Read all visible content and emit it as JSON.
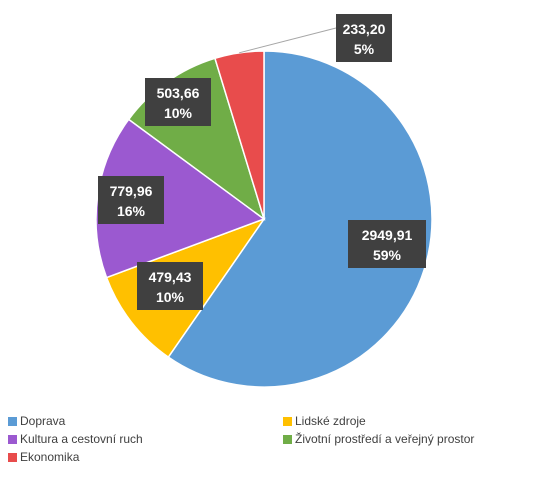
{
  "chart_data": {
    "type": "pie",
    "title": "",
    "start_angle_deg": 0,
    "direction": "clockwise",
    "slices": [
      {
        "name": "Doprava",
        "value": 2949.91,
        "value_label": "2949,91",
        "percent_label": "59%",
        "color": "#5b9bd5"
      },
      {
        "name": "Lidské zdroje",
        "value": 479.43,
        "value_label": "479,43",
        "percent_label": "10%",
        "color": "#ffc000"
      },
      {
        "name": "Kultura a cestovní ruch",
        "value": 779.96,
        "value_label": "779,96",
        "percent_label": "16%",
        "color": "#9b59d0"
      },
      {
        "name": "Životní prostředí a veřejný prostor",
        "value": 503.66,
        "value_label": "503,66",
        "percent_label": "10%",
        "color": "#70ad47"
      },
      {
        "name": "Ekonomika",
        "value": 233.2,
        "value_label": "233,20",
        "percent_label": "5%",
        "color": "#e84c4c"
      }
    ],
    "label_style": {
      "background": "#404040",
      "text_color": "#ffffff"
    },
    "legend_position": "bottom"
  }
}
